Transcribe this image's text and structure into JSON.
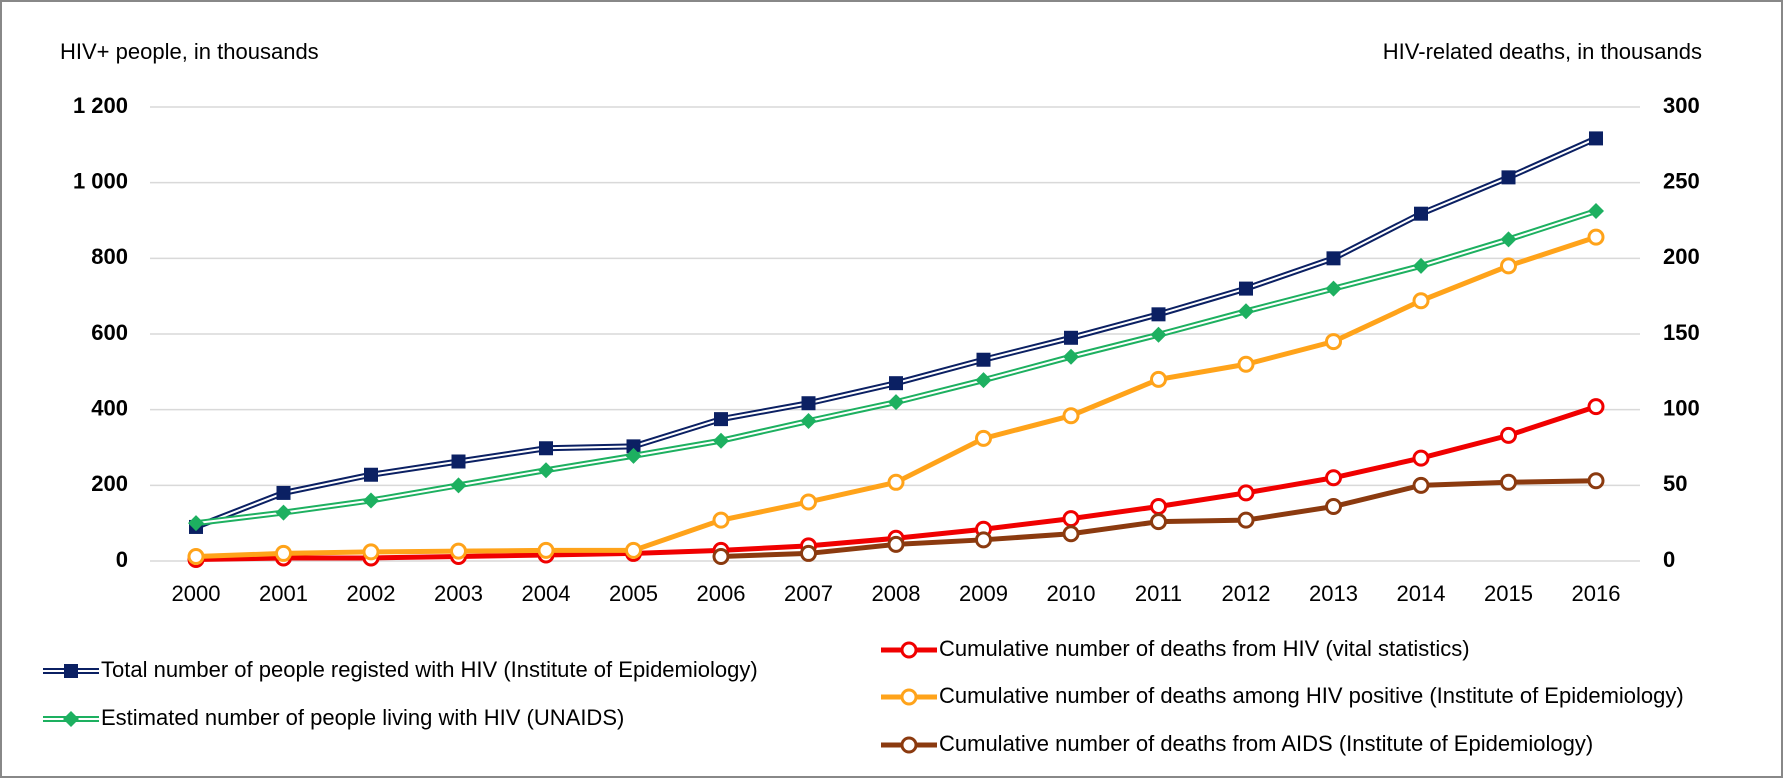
{
  "chart_data": {
    "type": "line",
    "y_axis_label": "HIV+ people, in thousands",
    "y2_axis_label": "HIV-related deaths, in thousands",
    "categories": [
      "2000",
      "2001",
      "2002",
      "2003",
      "2004",
      "2005",
      "2006",
      "2007",
      "2008",
      "2009",
      "2010",
      "2011",
      "2012",
      "2013",
      "2014",
      "2015",
      "2016"
    ],
    "ylim": [
      0,
      1200
    ],
    "yticks": [
      0,
      200,
      400,
      600,
      800,
      {
        "value": 1000,
        "label": "1 000"
      },
      {
        "value": 1200,
        "label": "1 200"
      }
    ],
    "y2lim": [
      0,
      300
    ],
    "y2ticks": [
      0,
      50,
      100,
      150,
      200,
      250,
      300
    ],
    "grid": true,
    "series": [
      {
        "name": "Total number of people registed with HIV (Institute of Epidemiology)",
        "color": "#0b2063",
        "marker": "square",
        "double": true,
        "values": [
          90,
          180,
          228,
          263,
          298,
          303,
          375,
          417,
          470,
          532,
          590,
          652,
          720,
          800,
          918,
          1014,
          1117
        ]
      },
      {
        "name": "Estimated number of people living with HIV (UNAIDS)",
        "color": "#1db060",
        "marker": "diamond",
        "double": true,
        "values": [
          100,
          128,
          160,
          200,
          240,
          278,
          318,
          370,
          420,
          478,
          540,
          598,
          660,
          720,
          780,
          850,
          925
        ]
      },
      {
        "name": "Cumulative number of deaths from HIV (vital statistics)",
        "color": "#f00000",
        "marker": "circle",
        "axis": "y2",
        "values": [
          1,
          2,
          2,
          3,
          4,
          5,
          7,
          10,
          15,
          21,
          28,
          36,
          45,
          55,
          68,
          83,
          102
        ]
      },
      {
        "name": "Cumulative number of deaths among HIV positive (Institute of Epidemiology)",
        "color": "#ffa31a",
        "marker": "circle",
        "axis": "y2",
        "values": [
          3,
          5,
          6,
          6.5,
          7,
          7,
          27,
          39,
          52,
          81,
          96,
          120,
          130,
          145,
          172,
          195,
          214
        ]
      },
      {
        "name": "Cumulative number of deaths from AIDS (Institute of Epidemiology)",
        "color": "#8b3a0f",
        "marker": "circle",
        "axis": "y2",
        "values": [
          null,
          null,
          null,
          null,
          null,
          null,
          3,
          5,
          11,
          14,
          18,
          26,
          27,
          36,
          50,
          52,
          53
        ]
      }
    ]
  }
}
